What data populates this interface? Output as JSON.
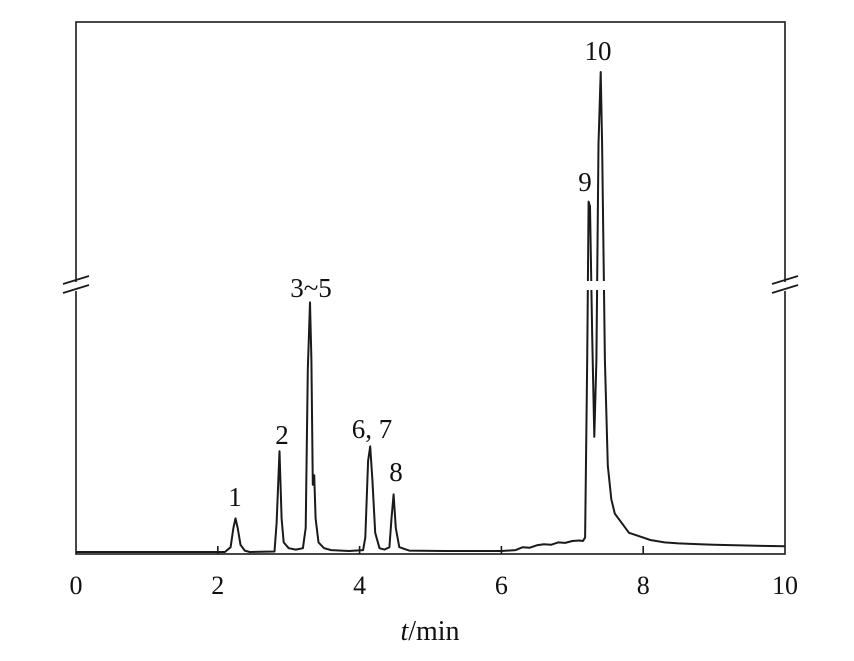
{
  "chart_data": {
    "type": "line",
    "title": "",
    "xlabel_italic": "t",
    "xlabel_rest": "/min",
    "ylabel": "",
    "xlim": [
      0,
      10
    ],
    "x_ticks": [
      0,
      2,
      4,
      6,
      8,
      10
    ],
    "y_axis_break": true,
    "grid": false,
    "line_color": "#1a1a1a",
    "peaks": [
      {
        "label": "1",
        "x": 2.25,
        "height": 0.07
      },
      {
        "label": "2",
        "x": 2.87,
        "height": 0.21
      },
      {
        "label": "3~5",
        "x": 3.3,
        "height": 0.52
      },
      {
        "label": "6, 7",
        "x": 4.15,
        "height": 0.22
      },
      {
        "label": "8",
        "x": 4.48,
        "height": 0.12
      },
      {
        "label": "9",
        "x": 7.25,
        "height": 0.73
      },
      {
        "label": "10",
        "x": 7.4,
        "height": 1.0
      }
    ],
    "series": [
      {
        "points": [
          [
            0,
            0
          ],
          [
            2.1,
            0
          ],
          [
            2.18,
            0.01
          ],
          [
            2.22,
            0.05
          ],
          [
            2.25,
            0.07
          ],
          [
            2.28,
            0.05
          ],
          [
            2.32,
            0.015
          ],
          [
            2.38,
            0.003
          ],
          [
            2.45,
            0
          ],
          [
            2.8,
            0.001
          ],
          [
            2.83,
            0.06
          ],
          [
            2.87,
            0.21
          ],
          [
            2.9,
            0.07
          ],
          [
            2.93,
            0.02
          ],
          [
            3.0,
            0.008
          ],
          [
            3.1,
            0.005
          ],
          [
            3.2,
            0.008
          ],
          [
            3.24,
            0.05
          ],
          [
            3.27,
            0.38
          ],
          [
            3.3,
            0.52
          ],
          [
            3.32,
            0.4
          ],
          [
            3.34,
            0.14
          ],
          [
            3.36,
            0.16
          ],
          [
            3.38,
            0.07
          ],
          [
            3.42,
            0.02
          ],
          [
            3.5,
            0.008
          ],
          [
            3.6,
            0.004
          ],
          [
            3.85,
            0.002
          ],
          [
            4.05,
            0.004
          ],
          [
            4.08,
            0.03
          ],
          [
            4.12,
            0.19
          ],
          [
            4.15,
            0.22
          ],
          [
            4.18,
            0.15
          ],
          [
            4.22,
            0.04
          ],
          [
            4.28,
            0.008
          ],
          [
            4.35,
            0.005
          ],
          [
            4.42,
            0.01
          ],
          [
            4.45,
            0.07
          ],
          [
            4.48,
            0.12
          ],
          [
            4.51,
            0.05
          ],
          [
            4.56,
            0.01
          ],
          [
            4.7,
            0.003
          ],
          [
            5.2,
            0.002
          ],
          [
            6.0,
            0.002
          ],
          [
            6.2,
            0.004
          ],
          [
            6.3,
            0.01
          ],
          [
            6.4,
            0.009
          ],
          [
            6.5,
            0.014
          ],
          [
            6.6,
            0.016
          ],
          [
            6.7,
            0.015
          ],
          [
            6.8,
            0.02
          ],
          [
            6.9,
            0.019
          ],
          [
            7.0,
            0.023
          ],
          [
            7.1,
            0.024
          ],
          [
            7.15,
            0.023
          ],
          [
            7.18,
            0.03
          ],
          [
            7.21,
            0.4
          ],
          [
            7.23,
            0.73
          ],
          [
            7.25,
            0.72
          ],
          [
            7.28,
            0.45
          ],
          [
            7.31,
            0.24
          ],
          [
            7.34,
            0.4
          ],
          [
            7.37,
            0.85
          ],
          [
            7.4,
            1.0
          ],
          [
            7.42,
            0.85
          ],
          [
            7.46,
            0.4
          ],
          [
            7.5,
            0.18
          ],
          [
            7.55,
            0.11
          ],
          [
            7.6,
            0.08
          ],
          [
            7.7,
            0.06
          ],
          [
            7.8,
            0.04
          ],
          [
            7.9,
            0.035
          ],
          [
            8.0,
            0.03
          ],
          [
            8.1,
            0.025
          ],
          [
            8.3,
            0.02
          ],
          [
            8.5,
            0.018
          ],
          [
            8.8,
            0.016
          ],
          [
            9.0,
            0.015
          ],
          [
            9.3,
            0.014
          ],
          [
            9.6,
            0.013
          ],
          [
            10.0,
            0.012
          ]
        ]
      }
    ]
  }
}
